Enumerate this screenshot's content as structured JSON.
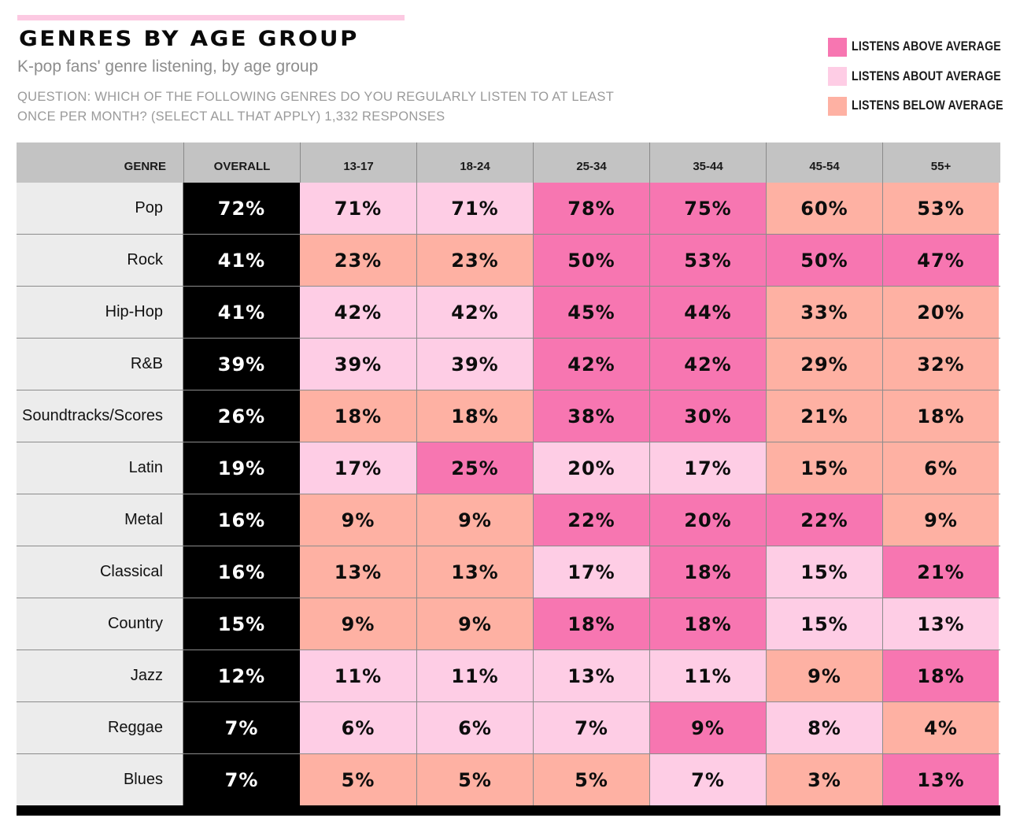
{
  "header": {
    "title": "GENRES BY AGE GROUP",
    "subtitle": "K-pop fans' genre listening, by age group",
    "question": "QUESTION: WHICH OF THE FOLLOWING GENRES DO YOU REGULARLY LISTEN TO AT LEAST ONCE PER MONTH? (SELECT ALL THAT APPLY) 1,332 RESPONSES"
  },
  "colors": {
    "above": "#f776b1",
    "about": "#fecde5",
    "below": "#feb1a3",
    "overall_bg": "#000000",
    "header_bg": "#c3c3c3",
    "genre_bg": "#ececec"
  },
  "legend": [
    {
      "key": "above",
      "label": "LISTENS ABOVE AVERAGE"
    },
    {
      "key": "about",
      "label": "LISTENS ABOUT AVERAGE"
    },
    {
      "key": "below",
      "label": "LISTENS BELOW AVERAGE"
    }
  ],
  "chart_data": {
    "type": "table",
    "title": "GENRES BY AGE GROUP",
    "subtitle": "K-pop fans' genre listening, by age group",
    "columns": [
      "GENRE",
      "OVERALL",
      "13-17",
      "18-24",
      "25-34",
      "35-44",
      "45-54",
      "55+"
    ],
    "rows": [
      {
        "genre": "Pop",
        "overall": "72%",
        "values": [
          "71%",
          "71%",
          "78%",
          "75%",
          "60%",
          "53%"
        ],
        "levels": [
          "about",
          "about",
          "above",
          "above",
          "below",
          "below"
        ]
      },
      {
        "genre": "Rock",
        "overall": "41%",
        "values": [
          "23%",
          "23%",
          "50%",
          "53%",
          "50%",
          "47%"
        ],
        "levels": [
          "below",
          "below",
          "above",
          "above",
          "above",
          "above"
        ]
      },
      {
        "genre": "Hip-Hop",
        "overall": "41%",
        "values": [
          "42%",
          "42%",
          "45%",
          "44%",
          "33%",
          "20%"
        ],
        "levels": [
          "about",
          "about",
          "above",
          "above",
          "below",
          "below"
        ]
      },
      {
        "genre": "R&B",
        "overall": "39%",
        "values": [
          "39%",
          "39%",
          "42%",
          "42%",
          "29%",
          "32%"
        ],
        "levels": [
          "about",
          "about",
          "above",
          "above",
          "below",
          "below"
        ]
      },
      {
        "genre": "Soundtracks/Scores",
        "overall": "26%",
        "values": [
          "18%",
          "18%",
          "38%",
          "30%",
          "21%",
          "18%"
        ],
        "levels": [
          "below",
          "below",
          "above",
          "above",
          "below",
          "below"
        ]
      },
      {
        "genre": "Latin",
        "overall": "19%",
        "values": [
          "17%",
          "25%",
          "20%",
          "17%",
          "15%",
          "6%"
        ],
        "levels": [
          "about",
          "above",
          "about",
          "about",
          "below",
          "below"
        ]
      },
      {
        "genre": "Metal",
        "overall": "16%",
        "values": [
          "9%",
          "9%",
          "22%",
          "20%",
          "22%",
          "9%"
        ],
        "levels": [
          "below",
          "below",
          "above",
          "above",
          "above",
          "below"
        ]
      },
      {
        "genre": "Classical",
        "overall": "16%",
        "values": [
          "13%",
          "13%",
          "17%",
          "18%",
          "15%",
          "21%"
        ],
        "levels": [
          "below",
          "below",
          "about",
          "above",
          "about",
          "above"
        ]
      },
      {
        "genre": "Country",
        "overall": "15%",
        "values": [
          "9%",
          "9%",
          "18%",
          "18%",
          "15%",
          "13%"
        ],
        "levels": [
          "below",
          "below",
          "above",
          "above",
          "about",
          "about"
        ]
      },
      {
        "genre": "Jazz",
        "overall": "12%",
        "values": [
          "11%",
          "11%",
          "13%",
          "11%",
          "9%",
          "18%"
        ],
        "levels": [
          "about",
          "about",
          "about",
          "about",
          "below",
          "above"
        ]
      },
      {
        "genre": "Reggae",
        "overall": "7%",
        "values": [
          "6%",
          "6%",
          "7%",
          "9%",
          "8%",
          "4%"
        ],
        "levels": [
          "about",
          "about",
          "about",
          "above",
          "about",
          "below"
        ]
      },
      {
        "genre": "Blues",
        "overall": "7%",
        "values": [
          "5%",
          "5%",
          "5%",
          "7%",
          "3%",
          "13%"
        ],
        "levels": [
          "below",
          "below",
          "below",
          "about",
          "below",
          "above"
        ]
      }
    ]
  }
}
